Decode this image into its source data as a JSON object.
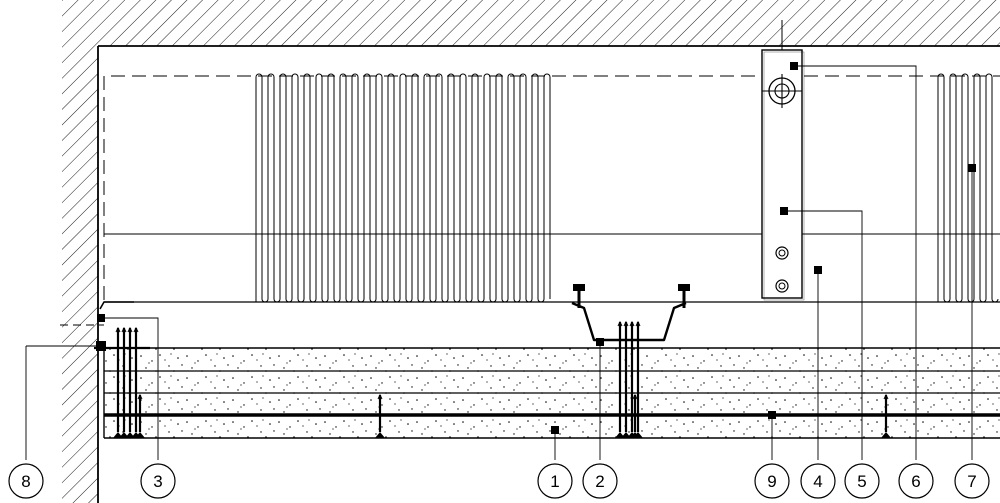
{
  "callouts": [
    {
      "label": "8"
    },
    {
      "label": "3"
    },
    {
      "label": "1"
    },
    {
      "label": "2"
    },
    {
      "label": "9"
    },
    {
      "label": "4"
    },
    {
      "label": "5"
    },
    {
      "label": "6"
    },
    {
      "label": "7"
    }
  ]
}
